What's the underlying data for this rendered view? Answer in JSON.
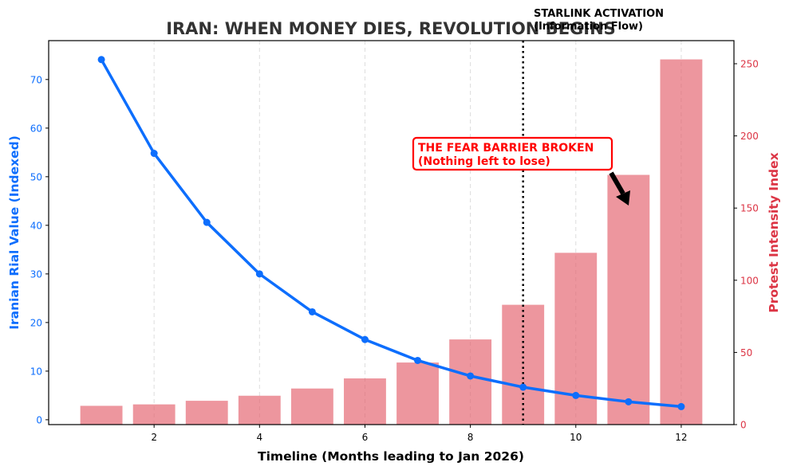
{
  "chart_data": {
    "type": "bar+line",
    "title": "IRAN: WHEN MONEY DIES, REVOLUTION BEGINS",
    "xlabel": "Timeline (Months leading to Jan 2026)",
    "ylabel_left": "Iranian Rial Value (Indexed)",
    "ylabel_right": "Protest Intensity Index",
    "xlim": [
      0,
      13
    ],
    "ylim_left": [
      -1,
      78
    ],
    "ylim_right": [
      0,
      266
    ],
    "x_ticks": [
      2,
      4,
      6,
      8,
      10,
      12
    ],
    "y_ticks_left": [
      0,
      10,
      20,
      30,
      40,
      50,
      60,
      70
    ],
    "y_ticks_right": [
      0,
      50,
      100,
      150,
      200,
      250
    ],
    "grid": "vertical dashed at x ticks",
    "x": [
      1,
      2,
      3,
      4,
      5,
      6,
      7,
      8,
      9,
      10,
      11,
      12
    ],
    "series": [
      {
        "name": "Iranian Rial Value (Indexed)",
        "type": "line",
        "axis": "left",
        "color": "#0d6efd",
        "values": [
          74.1,
          54.8,
          40.6,
          30.0,
          22.2,
          16.5,
          12.2,
          9.0,
          6.7,
          5.0,
          3.7,
          2.7
        ]
      },
      {
        "name": "Protest Intensity Index",
        "type": "bar",
        "axis": "right",
        "color": "#e35d6a",
        "opacity": 0.65,
        "values": [
          13,
          14,
          16.5,
          20,
          25,
          32,
          43,
          59,
          83,
          119,
          173,
          253
        ]
      }
    ],
    "annotations": [
      {
        "type": "vline",
        "x": 9,
        "style": "dotted",
        "color": "#000000",
        "label_line1": "STARLINK ACTIVATION",
        "label_line2": "(Information Flow)"
      },
      {
        "type": "callout",
        "text_line1": "THE FEAR BARRIER BROKEN",
        "text_line2": "(Nothing left to lose)",
        "color": "#ff0000",
        "arrow_to": {
          "x": 11,
          "y_right": 150
        }
      }
    ]
  },
  "colors": {
    "title": "#333333",
    "left_axis": "#0d6efd",
    "right_axis": "#dc3545",
    "bars": "#e35d6a",
    "callout": "#ff0000"
  }
}
